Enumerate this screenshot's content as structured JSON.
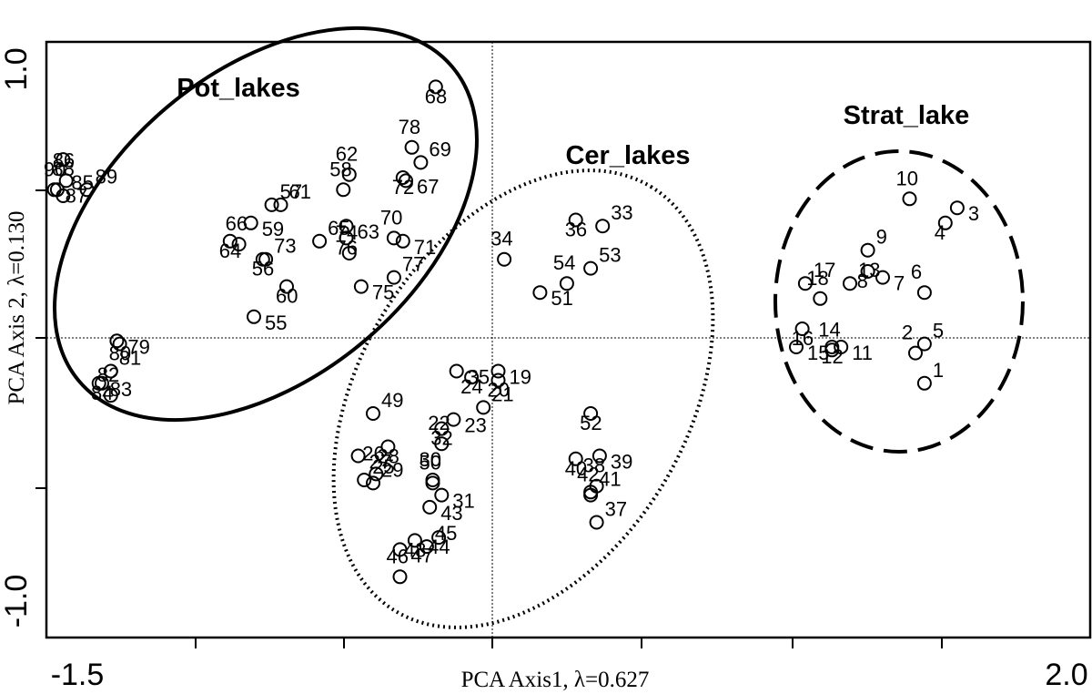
{
  "chart_data": {
    "type": "scatter",
    "xlabel": "PCA Axis1, λ=0.627",
    "ylabel": "PCA Axis 2, λ=0.130",
    "xlim": [
      -1.5,
      2.0
    ],
    "ylim": [
      -1.0,
      1.0
    ],
    "x_tick_labels": [
      "-1.5",
      "2.0"
    ],
    "y_tick_labels": [
      "1.0",
      "-1.0"
    ],
    "reference_lines": {
      "x": 0,
      "y": 0
    },
    "groups": [
      {
        "name": "Pot_lakes",
        "outline": "solid"
      },
      {
        "name": "Cer_lakes",
        "outline": "dotted"
      },
      {
        "name": "Strat_lake",
        "outline": "dashed"
      }
    ],
    "points": [
      {
        "label": "1",
        "x": 1.45,
        "y": -0.15
      },
      {
        "label": "2",
        "x": 1.42,
        "y": -0.05
      },
      {
        "label": "3",
        "x": 1.56,
        "y": 0.43
      },
      {
        "label": "4",
        "x": 1.52,
        "y": 0.38
      },
      {
        "label": "5",
        "x": 1.45,
        "y": -0.02
      },
      {
        "label": "6",
        "x": 1.45,
        "y": 0.15
      },
      {
        "label": "7",
        "x": 1.31,
        "y": 0.2
      },
      {
        "label": "8",
        "x": 1.26,
        "y": 0.22
      },
      {
        "label": "9",
        "x": 1.26,
        "y": 0.29
      },
      {
        "label": "10",
        "x": 1.4,
        "y": 0.46
      },
      {
        "label": "11",
        "x": 1.17,
        "y": -0.03
      },
      {
        "label": "12",
        "x": 1.14,
        "y": -0.03
      },
      {
        "label": "13",
        "x": 1.2,
        "y": 0.18
      },
      {
        "label": "14",
        "x": 1.14,
        "y": -0.04
      },
      {
        "label": "15",
        "x": 1.02,
        "y": -0.03
      },
      {
        "label": "16",
        "x": 1.04,
        "y": 0.03
      },
      {
        "label": "17",
        "x": 1.05,
        "y": 0.18
      },
      {
        "label": "18",
        "x": 1.1,
        "y": 0.13
      },
      {
        "label": "19",
        "x": 0.02,
        "y": -0.11
      },
      {
        "label": "20",
        "x": 0.02,
        "y": -0.14
      },
      {
        "label": "21",
        "x": -0.03,
        "y": -0.23
      },
      {
        "label": "22",
        "x": -0.17,
        "y": -0.35
      },
      {
        "label": "23",
        "x": -0.13,
        "y": -0.27
      },
      {
        "label": "24",
        "x": -0.07,
        "y": -0.13
      },
      {
        "label": "25",
        "x": -0.43,
        "y": -0.47
      },
      {
        "label": "26",
        "x": -0.39,
        "y": -0.45
      },
      {
        "label": "27",
        "x": -0.45,
        "y": -0.39
      },
      {
        "label": "28",
        "x": -0.35,
        "y": -0.36
      },
      {
        "label": "29",
        "x": -0.4,
        "y": -0.48
      },
      {
        "label": "30",
        "x": -0.2,
        "y": -0.47
      },
      {
        "label": "31",
        "x": -0.17,
        "y": -0.52
      },
      {
        "label": "32",
        "x": -0.17,
        "y": -0.3
      },
      {
        "label": "33",
        "x": 0.37,
        "y": 0.37
      },
      {
        "label": "34",
        "x": 0.04,
        "y": 0.26
      },
      {
        "label": "35",
        "x": -0.12,
        "y": -0.11
      },
      {
        "label": "36",
        "x": 0.28,
        "y": 0.39
      },
      {
        "label": "37",
        "x": 0.35,
        "y": -0.61
      },
      {
        "label": "38",
        "x": 0.35,
        "y": -0.49
      },
      {
        "label": "39",
        "x": 0.36,
        "y": -0.39
      },
      {
        "label": "40",
        "x": 0.28,
        "y": -0.4
      },
      {
        "label": "41",
        "x": 0.33,
        "y": -0.51
      },
      {
        "label": "42",
        "x": 0.33,
        "y": -0.52
      },
      {
        "label": "43",
        "x": -0.21,
        "y": -0.56
      },
      {
        "label": "44",
        "x": -0.18,
        "y": -0.66
      },
      {
        "label": "45",
        "x": -0.22,
        "y": -0.69
      },
      {
        "label": "46",
        "x": -0.31,
        "y": -0.79
      },
      {
        "label": "47",
        "x": -0.31,
        "y": -0.7
      },
      {
        "label": "48",
        "x": -0.26,
        "y": -0.67
      },
      {
        "label": "49",
        "x": -0.4,
        "y": -0.25
      },
      {
        "label": "50",
        "x": -0.2,
        "y": -0.48
      },
      {
        "label": "51",
        "x": 0.16,
        "y": 0.15
      },
      {
        "label": "52",
        "x": 0.33,
        "y": -0.25
      },
      {
        "label": "53",
        "x": 0.33,
        "y": 0.23
      },
      {
        "label": "54",
        "x": 0.25,
        "y": 0.18
      },
      {
        "label": "55",
        "x": -0.8,
        "y": 0.07
      },
      {
        "label": "56",
        "x": -0.77,
        "y": 0.26
      },
      {
        "label": "57",
        "x": -0.74,
        "y": 0.44
      },
      {
        "label": "58",
        "x": -0.5,
        "y": 0.49
      },
      {
        "label": "59",
        "x": -0.81,
        "y": 0.38
      },
      {
        "label": "60",
        "x": -0.69,
        "y": 0.17
      },
      {
        "label": "61",
        "x": -0.71,
        "y": 0.44
      },
      {
        "label": "62",
        "x": -0.48,
        "y": 0.54
      },
      {
        "label": "63",
        "x": -0.49,
        "y": 0.37
      },
      {
        "label": "64",
        "x": -0.88,
        "y": 0.32
      },
      {
        "label": "65",
        "x": -0.58,
        "y": 0.32
      },
      {
        "label": "66",
        "x": -0.85,
        "y": 0.31
      },
      {
        "label": "67",
        "x": -0.29,
        "y": 0.52
      },
      {
        "label": "68",
        "x": -0.19,
        "y": 0.83
      },
      {
        "label": "69",
        "x": -0.24,
        "y": 0.58
      },
      {
        "label": "70",
        "x": -0.33,
        "y": 0.33
      },
      {
        "label": "71",
        "x": -0.3,
        "y": 0.32
      },
      {
        "label": "72",
        "x": -0.3,
        "y": 0.53
      },
      {
        "label": "73",
        "x": -0.76,
        "y": 0.26
      },
      {
        "label": "74",
        "x": -0.48,
        "y": 0.28
      },
      {
        "label": "75",
        "x": -0.44,
        "y": 0.17
      },
      {
        "label": "76",
        "x": -0.49,
        "y": 0.33
      },
      {
        "label": "77",
        "x": -0.33,
        "y": 0.2
      },
      {
        "label": "78",
        "x": -0.27,
        "y": 0.63
      },
      {
        "label": "79",
        "x": -1.26,
        "y": -0.01
      },
      {
        "label": "80",
        "x": -1.25,
        "y": -0.02
      },
      {
        "label": "81",
        "x": -1.28,
        "y": -0.11
      },
      {
        "label": "82",
        "x": -1.28,
        "y": -0.19
      },
      {
        "label": "83",
        "x": -1.32,
        "y": -0.15
      },
      {
        "label": "84",
        "x": -1.31,
        "y": -0.15
      },
      {
        "label": "85",
        "x": -1.44,
        "y": 0.47
      },
      {
        "label": "86",
        "x": -1.43,
        "y": 0.52
      },
      {
        "label": "87",
        "x": -1.47,
        "y": 0.49
      },
      {
        "label": "88",
        "x": -1.44,
        "y": 0.59
      },
      {
        "label": "89",
        "x": -1.36,
        "y": 0.49
      },
      {
        "label": "90",
        "x": -1.46,
        "y": 0.49
      }
    ]
  }
}
